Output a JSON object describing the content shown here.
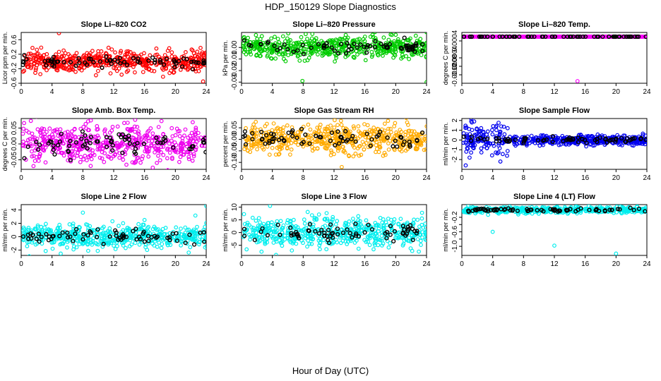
{
  "title": "HDP_150129  Slope Diagnostics",
  "xlabel": "Hour of Day (UTC)",
  "chart_data": [
    {
      "type": "scatter",
      "title": "Slope Li–820 CO2",
      "ylabel": "Licor ppm per min.",
      "color": "#ff0000",
      "xlim": [
        0,
        24
      ],
      "ylim": [
        -0.6,
        0.8
      ],
      "xticks": [
        0,
        4,
        8,
        12,
        16,
        20,
        24
      ],
      "yticks": [
        -0.6,
        -0.2,
        0.2,
        0.6
      ],
      "ytick_labels": [
        "-0.6",
        "-0.2",
        "0.2",
        "0.6"
      ],
      "noise": [
        0,
        0.14
      ],
      "outliers": [
        [
          4.9,
          0.78
        ],
        [
          23.6,
          -0.55
        ],
        [
          18.4,
          -0.42
        ],
        [
          9.7,
          -0.38
        ]
      ]
    },
    {
      "type": "scatter",
      "title": "Slope Li–820 Pressure",
      "ylabel": "kPa per min.",
      "color": "#00cc00",
      "xlim": [
        0,
        24
      ],
      "ylim": [
        -0.031,
        0.013
      ],
      "xticks": [
        0,
        4,
        8,
        12,
        16,
        20,
        24
      ],
      "yticks": [
        -0.03,
        -0.02,
        -0.01,
        0
      ],
      "ytick_labels": [
        "-0.03",
        "-0.02",
        "-0.01",
        "0.00"
      ],
      "noise": [
        0,
        0.0045
      ],
      "outliers": [
        [
          7.9,
          -0.029
        ],
        [
          24,
          -0.03
        ],
        [
          16.1,
          -0.011
        ],
        [
          20,
          0.011
        ],
        [
          17,
          0.011
        ]
      ]
    },
    {
      "type": "scatter",
      "title": "Slope Li–820 Temp.",
      "ylabel": "degrees C per min.",
      "color": "#ff00ff",
      "xlim": [
        0,
        24
      ],
      "ylim": [
        -0.0016,
        0.0008
      ],
      "xticks": [
        0,
        4,
        8,
        12,
        16,
        20,
        24
      ],
      "yticks": [
        -0.0012,
        -0.0008,
        -0.0004,
        0.0004
      ],
      "ytick_labels": [
        "-0.0012",
        "-0.0008",
        "-0.0004",
        "0.0004"
      ],
      "noise": [
        0.0006,
        0
      ],
      "outliers": [
        [
          15,
          -0.0015
        ]
      ]
    },
    {
      "type": "scatter",
      "title": "Slope Amb. Box Temp.",
      "ylabel": "degrees C per min.",
      "color": "#ee00ee",
      "xlim": [
        0,
        24
      ],
      "ylim": [
        -0.08,
        0.08
      ],
      "xticks": [
        0,
        4,
        8,
        12,
        16,
        20,
        24
      ],
      "yticks": [
        -0.05,
        0,
        0.05
      ],
      "ytick_labels": [
        "-0.05",
        "0.00",
        "0.05"
      ],
      "noise": [
        0,
        0.032
      ],
      "outliers": []
    },
    {
      "type": "scatter",
      "title": "Slope Gas Stream RH",
      "ylabel": "percent per min.",
      "color": "#ffaa00",
      "xlim": [
        0,
        24
      ],
      "ylim": [
        -0.13,
        0.09
      ],
      "xticks": [
        0,
        4,
        8,
        12,
        16,
        20,
        24
      ],
      "yticks": [
        -0.1,
        -0.05,
        0,
        0.05
      ],
      "ytick_labels": [
        "-0.10",
        "-0.05",
        "0.00",
        "0.05"
      ],
      "noise": [
        0,
        0.03
      ],
      "outliers": [
        [
          13,
          -0.12
        ],
        [
          12.9,
          0.08
        ],
        [
          19,
          0.08
        ]
      ]
    },
    {
      "type": "scatter",
      "title": "Slope Sample Flow",
      "ylabel": "ml/min per min.",
      "color": "#0000ee",
      "xlim": [
        0,
        24
      ],
      "ylim": [
        -3,
        2.2
      ],
      "xticks": [
        0,
        4,
        8,
        12,
        16,
        20,
        24
      ],
      "yticks": [
        -2,
        -1,
        0,
        1,
        2
      ],
      "ytick_labels": [
        "-2",
        "-1",
        "0",
        "1",
        "2"
      ],
      "noise": [
        0,
        0.25
      ],
      "outliers": [
        [
          0.5,
          -2.6
        ],
        [
          1.3,
          1.8
        ],
        [
          1.6,
          1.9
        ],
        [
          5,
          -2.2
        ],
        [
          1,
          -1.8
        ]
      ]
    },
    {
      "type": "scatter",
      "title": "Slope Line 2 Flow",
      "ylabel": "ml/min per min.",
      "color": "#00eeee",
      "xlim": [
        0,
        24
      ],
      "ylim": [
        -2.8,
        4.8
      ],
      "xticks": [
        0,
        4,
        8,
        12,
        16,
        20,
        24
      ],
      "yticks": [
        -2,
        0,
        2,
        4
      ],
      "ytick_labels": [
        "-2",
        "0",
        "2",
        "4"
      ],
      "noise": [
        0,
        0.85
      ],
      "outliers": [
        [
          8,
          3.6
        ],
        [
          24,
          4.6
        ],
        [
          16,
          2.5
        ]
      ]
    },
    {
      "type": "scatter",
      "title": "Slope Line 3 Flow",
      "ylabel": "ml/min per min.",
      "color": "#00eeee",
      "xlim": [
        0,
        24
      ],
      "ylim": [
        -9,
        11
      ],
      "xticks": [
        0,
        4,
        8,
        12,
        16,
        20,
        24
      ],
      "yticks": [
        -5,
        0,
        5,
        10
      ],
      "ytick_labels": [
        "-5",
        "0",
        "5",
        "10"
      ],
      "noise": [
        0,
        2.8
      ],
      "outliers": [
        [
          3.7,
          10.5
        ],
        [
          23,
          -7.5
        ]
      ]
    },
    {
      "type": "scatter",
      "title": "Slope Line 4 (LT) Flow",
      "ylabel": "ml/min per min.",
      "color": "#00eeee",
      "xlim": [
        0,
        24
      ],
      "ylim": [
        -1.25,
        0.15
      ],
      "xticks": [
        0,
        4,
        8,
        12,
        16,
        20,
        24
      ],
      "yticks": [
        -1.0,
        -0.8,
        -0.6,
        -0.4,
        -0.2
      ],
      "ytick_labels": [
        "-1.0",
        "",
        "-0.6",
        "",
        "-0.2"
      ],
      "noise": [
        0,
        0.04
      ],
      "outliers": [
        [
          4,
          -0.6
        ],
        [
          12,
          -0.98
        ],
        [
          20,
          -1.2
        ]
      ]
    }
  ]
}
